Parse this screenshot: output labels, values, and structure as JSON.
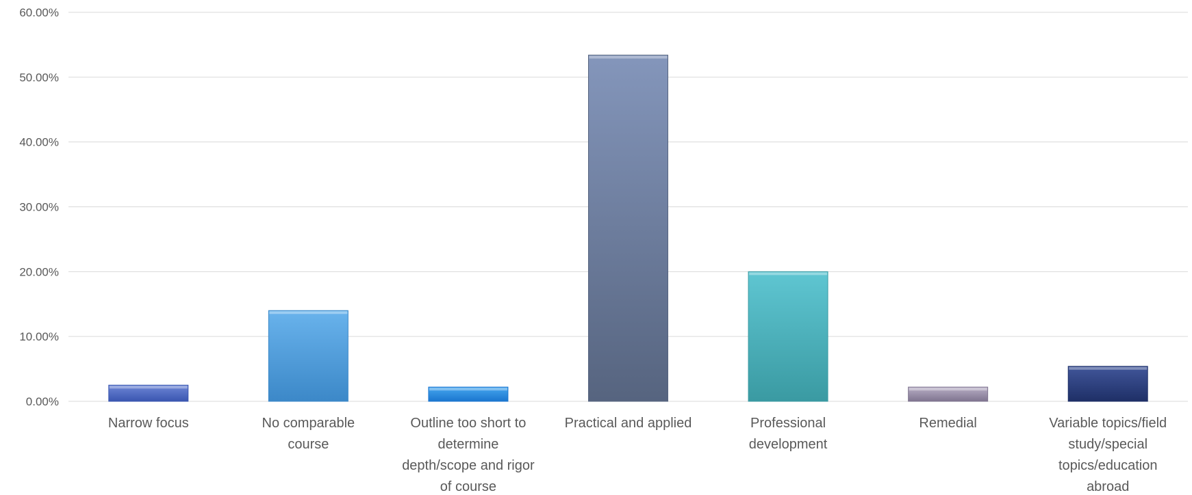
{
  "chart_data": {
    "type": "bar",
    "title": "",
    "xlabel": "",
    "ylabel": "",
    "ylim": [
      0,
      0.6
    ],
    "yticks": [
      "0.00%",
      "10.00%",
      "20.00%",
      "30.00%",
      "40.00%",
      "50.00%",
      "60.00%"
    ],
    "grid": true,
    "legend": "none",
    "categories": [
      "Narrow focus",
      "No comparable course",
      "Outline too short to determine depth/scope and rigor of course",
      "Practical and applied",
      "Professional development",
      "Remedial",
      "Variable topics/field study/special topics/education abroad"
    ],
    "category_lines": [
      [
        "Narrow focus"
      ],
      [
        "No comparable",
        "course"
      ],
      [
        "Outline too short to",
        "determine",
        "depth/scope and rigor",
        "of course"
      ],
      [
        "Practical and applied"
      ],
      [
        "Professional",
        "development"
      ],
      [
        "Remedial"
      ],
      [
        "Variable topics/field",
        "study/special",
        "topics/education",
        "abroad"
      ]
    ],
    "values": [
      0.025,
      0.14,
      0.022,
      0.534,
      0.2,
      0.022,
      0.054
    ],
    "colors": [
      [
        "#6d86d6",
        "#3a56b0"
      ],
      [
        "#69b3ec",
        "#3c88c8"
      ],
      [
        "#45a6ee",
        "#1b76cf"
      ],
      [
        "#8496bb",
        "#56647f"
      ],
      [
        "#5fc6d2",
        "#3a9aa2"
      ],
      [
        "#b7aec5",
        "#7f748f"
      ],
      [
        "#41569a",
        "#1e2f66"
      ]
    ]
  }
}
